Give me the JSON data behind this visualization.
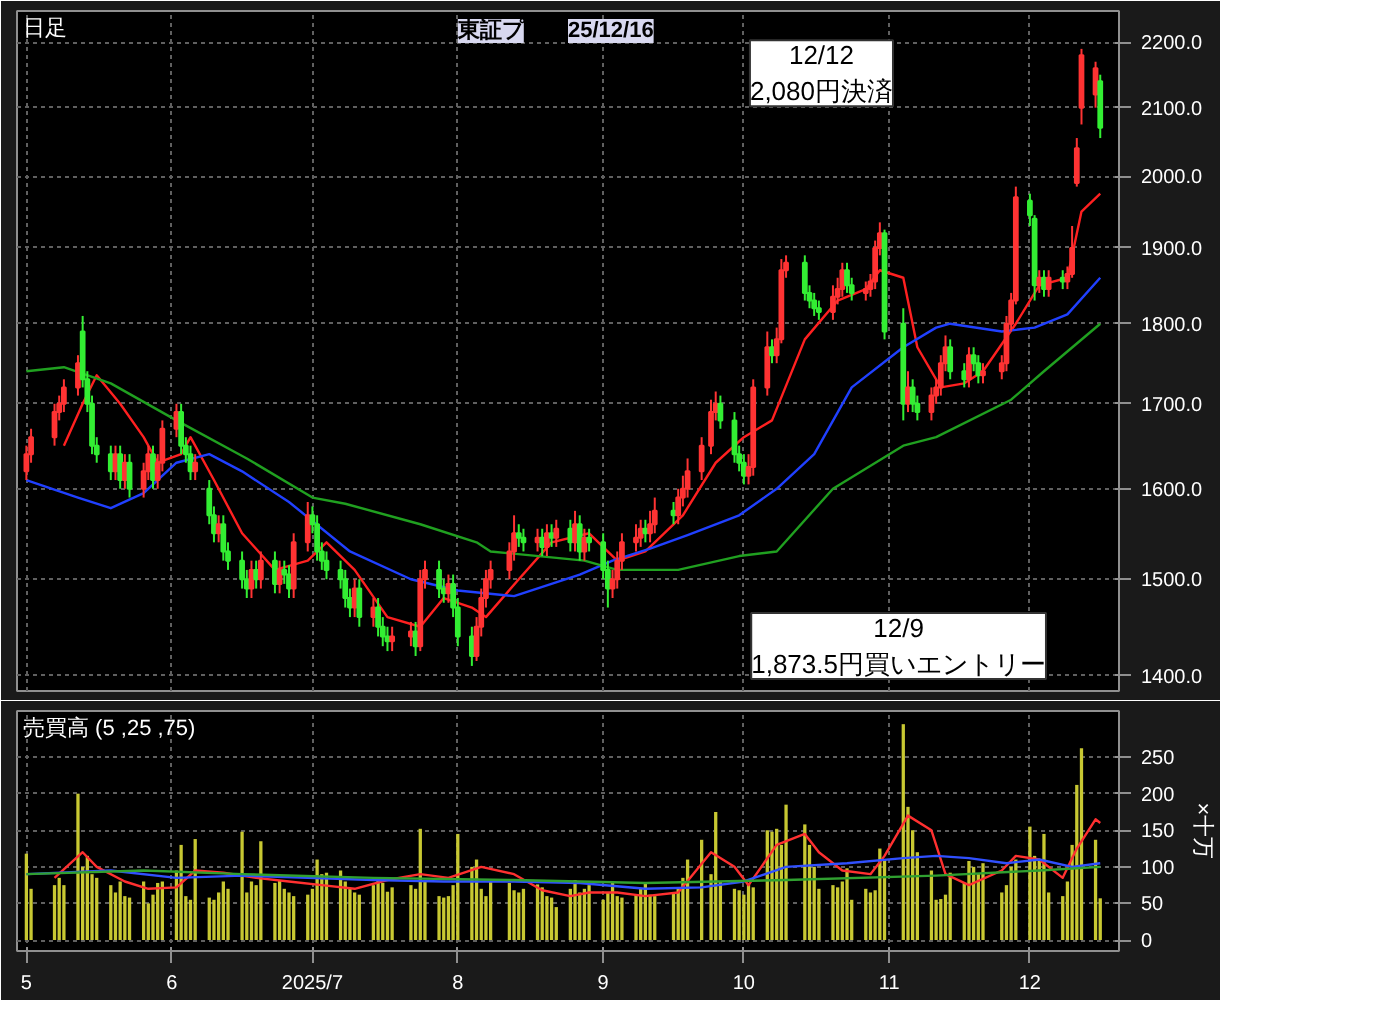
{
  "chart_data": [
    {
      "type": "candlestick",
      "title": "日足",
      "annotations": [
        "東証プ",
        "25/12/16",
        "12/12\n2,080円決済",
        "12/9\n1,873.5円買いエントリー"
      ],
      "x": [
        "2025-05-01",
        "2025-05-02",
        "2025-05-07",
        "2025-05-08",
        "2025-05-09",
        "2025-05-12",
        "2025-05-13",
        "2025-05-14",
        "2025-05-15",
        "2025-05-16",
        "2025-05-19",
        "2025-05-20",
        "2025-05-21",
        "2025-05-22",
        "2025-05-23",
        "2025-05-26",
        "2025-05-27",
        "2025-05-28",
        "2025-05-29",
        "2025-05-30",
        "2025-06-02",
        "2025-06-03",
        "2025-06-04",
        "2025-06-05",
        "2025-06-06",
        "2025-06-09",
        "2025-06-10",
        "2025-06-11",
        "2025-06-12",
        "2025-06-13",
        "2025-06-16",
        "2025-06-17",
        "2025-06-18",
        "2025-06-19",
        "2025-06-20",
        "2025-06-23",
        "2025-06-24",
        "2025-06-25",
        "2025-06-26",
        "2025-06-27",
        "2025-06-30",
        "2025-07-01",
        "2025-07-02",
        "2025-07-03",
        "2025-07-04",
        "2025-07-07",
        "2025-07-08",
        "2025-07-09",
        "2025-07-10",
        "2025-07-11",
        "2025-07-14",
        "2025-07-15",
        "2025-07-16",
        "2025-07-17",
        "2025-07-18",
        "2025-07-22",
        "2025-07-23",
        "2025-07-24",
        "2025-07-25",
        "2025-07-28",
        "2025-07-29",
        "2025-07-30",
        "2025-07-31",
        "2025-08-01",
        "2025-08-04",
        "2025-08-05",
        "2025-08-06",
        "2025-08-07",
        "2025-08-08",
        "2025-08-12",
        "2025-08-13",
        "2025-08-14",
        "2025-08-15",
        "2025-08-18",
        "2025-08-19",
        "2025-08-20",
        "2025-08-21",
        "2025-08-22",
        "2025-08-25",
        "2025-08-26",
        "2025-08-27",
        "2025-08-28",
        "2025-08-29",
        "2025-09-01",
        "2025-09-02",
        "2025-09-03",
        "2025-09-04",
        "2025-09-05",
        "2025-09-08",
        "2025-09-09",
        "2025-09-10",
        "2025-09-11",
        "2025-09-12",
        "2025-09-16",
        "2025-09-17",
        "2025-09-18",
        "2025-09-19",
        "2025-09-22",
        "2025-09-24",
        "2025-09-25",
        "2025-09-26",
        "2025-09-29",
        "2025-09-30",
        "2025-10-01",
        "2025-10-02",
        "2025-10-03",
        "2025-10-06",
        "2025-10-07",
        "2025-10-08",
        "2025-10-09",
        "2025-10-10",
        "2025-10-14",
        "2025-10-15",
        "2025-10-16",
        "2025-10-17",
        "2025-10-20",
        "2025-10-21",
        "2025-10-22",
        "2025-10-23",
        "2025-10-24",
        "2025-10-27",
        "2025-10-28",
        "2025-10-29",
        "2025-10-30",
        "2025-10-31",
        "2025-11-04",
        "2025-11-05",
        "2025-11-06",
        "2025-11-07",
        "2025-11-10",
        "2025-11-11",
        "2025-11-12",
        "2025-11-13",
        "2025-11-14",
        "2025-11-17",
        "2025-11-18",
        "2025-11-19",
        "2025-11-20",
        "2025-11-21",
        "2025-11-25",
        "2025-11-26",
        "2025-11-27",
        "2025-11-28",
        "2025-12-01",
        "2025-12-02",
        "2025-12-03",
        "2025-12-04",
        "2025-12-05",
        "2025-12-08",
        "2025-12-09",
        "2025-12-10",
        "2025-12-11",
        "2025-12-12",
        "2025-12-15",
        "2025-12-16"
      ],
      "ohlc": [
        [
          1620,
          1650,
          1610,
          1640
        ],
        [
          1640,
          1670,
          1630,
          1660
        ],
        [
          1660,
          1700,
          1650,
          1690
        ],
        [
          1690,
          1710,
          1680,
          1700
        ],
        [
          1700,
          1730,
          1690,
          1720
        ],
        [
          1720,
          1760,
          1710,
          1750
        ],
        [
          1790,
          1810,
          1720,
          1730
        ],
        [
          1730,
          1740,
          1690,
          1700
        ],
        [
          1700,
          1710,
          1640,
          1650
        ],
        [
          1650,
          1660,
          1630,
          1640
        ],
        [
          1640,
          1650,
          1610,
          1620
        ],
        [
          1620,
          1650,
          1610,
          1640
        ],
        [
          1640,
          1650,
          1600,
          1610
        ],
        [
          1610,
          1640,
          1600,
          1630
        ],
        [
          1630,
          1640,
          1590,
          1600
        ],
        [
          1600,
          1630,
          1590,
          1620
        ],
        [
          1620,
          1650,
          1610,
          1640
        ],
        [
          1640,
          1650,
          1600,
          1610
        ],
        [
          1610,
          1640,
          1600,
          1630
        ],
        [
          1630,
          1680,
          1620,
          1670
        ],
        [
          1670,
          1700,
          1660,
          1690
        ],
        [
          1690,
          1700,
          1640,
          1650
        ],
        [
          1650,
          1660,
          1630,
          1640
        ],
        [
          1640,
          1650,
          1610,
          1620
        ],
        [
          1620,
          1640,
          1610,
          1630
        ],
        [
          1600,
          1610,
          1560,
          1570
        ],
        [
          1570,
          1580,
          1540,
          1550
        ],
        [
          1550,
          1570,
          1540,
          1560
        ],
        [
          1560,
          1570,
          1520,
          1530
        ],
        [
          1530,
          1540,
          1510,
          1520
        ],
        [
          1520,
          1530,
          1490,
          1500
        ],
        [
          1500,
          1510,
          1480,
          1490
        ],
        [
          1490,
          1520,
          1480,
          1510
        ],
        [
          1510,
          1520,
          1490,
          1500
        ],
        [
          1500,
          1530,
          1490,
          1520
        ],
        [
          1520,
          1530,
          1485,
          1495
        ],
        [
          1495,
          1520,
          1485,
          1510
        ],
        [
          1510,
          1520,
          1495,
          1505
        ],
        [
          1505,
          1515,
          1480,
          1490
        ],
        [
          1490,
          1550,
          1480,
          1540
        ],
        [
          1540,
          1585,
          1530,
          1570
        ],
        [
          1570,
          1580,
          1550,
          1560
        ],
        [
          1560,
          1570,
          1520,
          1530
        ],
        [
          1530,
          1540,
          1510,
          1520
        ],
        [
          1520,
          1530,
          1500,
          1510
        ],
        [
          1510,
          1520,
          1490,
          1500
        ],
        [
          1500,
          1510,
          1470,
          1480
        ],
        [
          1480,
          1490,
          1460,
          1470
        ],
        [
          1470,
          1500,
          1460,
          1490
        ],
        [
          1490,
          1500,
          1450,
          1460
        ],
        [
          1460,
          1480,
          1450,
          1470
        ],
        [
          1470,
          1480,
          1440,
          1450
        ],
        [
          1450,
          1460,
          1430,
          1440
        ],
        [
          1440,
          1450,
          1425,
          1435
        ],
        [
          1435,
          1450,
          1425,
          1440
        ],
        [
          1440,
          1455,
          1430,
          1445
        ],
        [
          1445,
          1455,
          1420,
          1430
        ],
        [
          1430,
          1510,
          1425,
          1500
        ],
        [
          1500,
          1520,
          1490,
          1510
        ],
        [
          1510,
          1520,
          1480,
          1490
        ],
        [
          1490,
          1500,
          1475,
          1485
        ],
        [
          1485,
          1505,
          1475,
          1495
        ],
        [
          1495,
          1505,
          1460,
          1470
        ],
        [
          1470,
          1480,
          1430,
          1440
        ],
        [
          1440,
          1450,
          1410,
          1420
        ],
        [
          1420,
          1460,
          1415,
          1450
        ],
        [
          1450,
          1490,
          1440,
          1480
        ],
        [
          1480,
          1510,
          1470,
          1500
        ],
        [
          1500,
          1520,
          1490,
          1510
        ],
        [
          1510,
          1540,
          1500,
          1530
        ],
        [
          1530,
          1570,
          1520,
          1550
        ],
        [
          1550,
          1560,
          1535,
          1545
        ],
        [
          1545,
          1555,
          1530,
          1540
        ],
        [
          1540,
          1555,
          1530,
          1545
        ],
        [
          1545,
          1555,
          1525,
          1535
        ],
        [
          1535,
          1560,
          1525,
          1550
        ],
        [
          1550,
          1560,
          1535,
          1545
        ],
        [
          1545,
          1565,
          1535,
          1555
        ],
        [
          1555,
          1565,
          1530,
          1540
        ],
        [
          1540,
          1575,
          1530,
          1560
        ],
        [
          1560,
          1570,
          1520,
          1530
        ],
        [
          1530,
          1555,
          1520,
          1545
        ],
        [
          1545,
          1555,
          1530,
          1540
        ],
        [
          1540,
          1550,
          1500,
          1510
        ],
        [
          1510,
          1520,
          1470,
          1490
        ],
        [
          1490,
          1510,
          1480,
          1500
        ],
        [
          1500,
          1530,
          1490,
          1520
        ],
        [
          1520,
          1550,
          1510,
          1540
        ],
        [
          1540,
          1560,
          1530,
          1545
        ],
        [
          1545,
          1565,
          1535,
          1555
        ],
        [
          1555,
          1565,
          1540,
          1550
        ],
        [
          1550,
          1575,
          1540,
          1560
        ],
        [
          1560,
          1590,
          1550,
          1575
        ],
        [
          1575,
          1585,
          1560,
          1570
        ],
        [
          1570,
          1600,
          1560,
          1590
        ],
        [
          1590,
          1615,
          1580,
          1600
        ],
        [
          1600,
          1635,
          1590,
          1620
        ],
        [
          1620,
          1660,
          1610,
          1650
        ],
        [
          1650,
          1705,
          1640,
          1690
        ],
        [
          1690,
          1715,
          1680,
          1700
        ],
        [
          1700,
          1710,
          1670,
          1680
        ],
        [
          1680,
          1690,
          1630,
          1640
        ],
        [
          1640,
          1650,
          1620,
          1630
        ],
        [
          1630,
          1640,
          1605,
          1615
        ],
        [
          1615,
          1640,
          1605,
          1625
        ],
        [
          1625,
          1730,
          1615,
          1720
        ],
        [
          1720,
          1790,
          1710,
          1770
        ],
        [
          1770,
          1780,
          1750,
          1760
        ],
        [
          1760,
          1795,
          1750,
          1780
        ],
        [
          1780,
          1885,
          1775,
          1870
        ],
        [
          1870,
          1890,
          1860,
          1880
        ],
        [
          1880,
          1890,
          1830,
          1840
        ],
        [
          1840,
          1850,
          1820,
          1830
        ],
        [
          1830,
          1840,
          1810,
          1820
        ],
        [
          1820,
          1830,
          1805,
          1815
        ],
        [
          1815,
          1850,
          1805,
          1835
        ],
        [
          1835,
          1860,
          1825,
          1845
        ],
        [
          1845,
          1880,
          1835,
          1870
        ],
        [
          1870,
          1880,
          1840,
          1850
        ],
        [
          1850,
          1860,
          1830,
          1840
        ],
        [
          1840,
          1855,
          1830,
          1845
        ],
        [
          1845,
          1865,
          1835,
          1855
        ],
        [
          1855,
          1910,
          1845,
          1900
        ],
        [
          1900,
          1935,
          1890,
          1920
        ],
        [
          1920,
          1925,
          1780,
          1790
        ],
        [
          1800,
          1820,
          1680,
          1700
        ],
        [
          1700,
          1740,
          1690,
          1720
        ],
        [
          1720,
          1730,
          1690,
          1700
        ],
        [
          1700,
          1710,
          1680,
          1690
        ],
        [
          1690,
          1720,
          1680,
          1710
        ],
        [
          1710,
          1730,
          1700,
          1720
        ],
        [
          1720,
          1760,
          1710,
          1750
        ],
        [
          1750,
          1785,
          1740,
          1770
        ],
        [
          1770,
          1780,
          1730,
          1740
        ],
        [
          1740,
          1750,
          1720,
          1730
        ],
        [
          1730,
          1770,
          1720,
          1760
        ],
        [
          1760,
          1770,
          1740,
          1750
        ],
        [
          1750,
          1760,
          1725,
          1735
        ],
        [
          1735,
          1750,
          1725,
          1740
        ],
        [
          1740,
          1760,
          1730,
          1750
        ],
        [
          1750,
          1810,
          1740,
          1800
        ],
        [
          1800,
          1840,
          1790,
          1830
        ],
        [
          1830,
          1985,
          1825,
          1970
        ],
        [
          1965,
          1975,
          1930,
          1945
        ],
        [
          1940,
          1945,
          1830,
          1850
        ],
        [
          1850,
          1870,
          1840,
          1860
        ],
        [
          1860,
          1870,
          1835,
          1845
        ],
        [
          1845,
          1870,
          1835,
          1860
        ],
        [
          1860,
          1870,
          1845,
          1855
        ],
        [
          1855,
          1875,
          1845,
          1865
        ],
        [
          1865,
          1930,
          1860,
          1900
        ],
        [
          1990,
          2055,
          1985,
          2040
        ],
        [
          2100,
          2190,
          2075,
          2180
        ],
        [
          2120,
          2170,
          2100,
          2160
        ],
        [
          2140,
          2150,
          2055,
          2070
        ]
      ],
      "colors": [
        "#ff3333",
        "#ff3333",
        "#ff3333",
        "#ff3333",
        "#ff3333",
        "#ff3333",
        "#33ee33",
        "#33ee33",
        "#33ee33",
        "#33ee33",
        "#33ee33",
        "#ff3333",
        "#33ee33",
        "#ff3333",
        "#33ee33",
        "#ff3333",
        "#ff3333",
        "#33ee33",
        "#ff3333",
        "#ff3333",
        "#ff3333",
        "#33ee33",
        "#33ee33",
        "#33ee33",
        "#ff3333",
        "#33ee33",
        "#33ee33",
        "#ff3333",
        "#33ee33",
        "#33ee33",
        "#33ee33",
        "#33ee33",
        "#ff3333",
        "#33ee33",
        "#ff3333",
        "#33ee33",
        "#ff3333",
        "#33ee33",
        "#33ee33",
        "#ff3333",
        "#ff3333",
        "#33ee33",
        "#33ee33",
        "#33ee33",
        "#33ee33",
        "#33ee33",
        "#33ee33",
        "#33ee33",
        "#ff3333",
        "#33ee33",
        "#ff3333",
        "#33ee33",
        "#33ee33",
        "#33ee33",
        "#ff3333",
        "#ff3333",
        "#33ee33",
        "#ff3333",
        "#ff3333",
        "#33ee33",
        "#33ee33",
        "#ff3333",
        "#33ee33",
        "#33ee33",
        "#33ee33",
        "#ff3333",
        "#ff3333",
        "#ff3333",
        "#ff3333",
        "#ff3333",
        "#ff3333",
        "#33ee33",
        "#33ee33",
        "#ff3333",
        "#33ee33",
        "#ff3333",
        "#33ee33",
        "#ff3333",
        "#33ee33",
        "#ff3333",
        "#33ee33",
        "#ff3333",
        "#33ee33",
        "#33ee33",
        "#33ee33",
        "#ff3333",
        "#ff3333",
        "#ff3333",
        "#ff3333",
        "#ff3333",
        "#33ee33",
        "#ff3333",
        "#ff3333",
        "#33ee33",
        "#ff3333",
        "#ff3333",
        "#ff3333",
        "#ff3333",
        "#ff3333",
        "#ff3333",
        "#33ee33",
        "#33ee33",
        "#33ee33",
        "#33ee33",
        "#ff3333",
        "#ff3333",
        "#ff3333",
        "#33ee33",
        "#ff3333",
        "#ff3333",
        "#ff3333",
        "#33ee33",
        "#33ee33",
        "#33ee33",
        "#33ee33",
        "#ff3333",
        "#ff3333",
        "#ff3333",
        "#33ee33",
        "#33ee33",
        "#ff3333",
        "#ff3333",
        "#ff3333",
        "#ff3333",
        "#33ee33",
        "#33ee33",
        "#ff3333",
        "#33ee33",
        "#33ee33",
        "#ff3333",
        "#ff3333",
        "#ff3333",
        "#ff3333",
        "#33ee33",
        "#33ee33",
        "#ff3333",
        "#33ee33",
        "#33ee33",
        "#ff3333",
        "#ff3333",
        "#ff3333",
        "#ff3333",
        "#ff3333",
        "#33ee33",
        "#33ee33",
        "#ff3333",
        "#33ee33",
        "#ff3333",
        "#33ee33",
        "#ff3333",
        "#ff3333",
        "#ff3333",
        "#ff3333",
        "#ff3333",
        "#33ee33"
      ],
      "series": [
        {
          "type": "line",
          "color": "#ff2020",
          "x": [
            "2025-05-09",
            "2025-05-13",
            "2025-05-16",
            "2025-05-21",
            "2025-05-26",
            "2025-05-29",
            "2025-06-03",
            "2025-06-05",
            "2025-06-10",
            "2025-06-16",
            "2025-06-23",
            "2025-06-30",
            "2025-07-04",
            "2025-07-10",
            "2025-07-17",
            "2025-07-24",
            "2025-07-29",
            "2025-08-04",
            "2025-08-07",
            "2025-08-14",
            "2025-08-21",
            "2025-08-29",
            "2025-09-04",
            "2025-09-10",
            "2025-09-18",
            "2025-09-25",
            "2025-10-01",
            "2025-10-07",
            "2025-10-14",
            "2025-10-21",
            "2025-10-27",
            "2025-10-30",
            "2025-11-04",
            "2025-11-07",
            "2025-11-12",
            "2025-11-17",
            "2025-11-21",
            "2025-11-28",
            "2025-12-03",
            "2025-12-09",
            "2025-12-12",
            "2025-12-16"
          ],
          "values": [
            1650,
            1700,
            1735,
            1700,
            1660,
            1630,
            1640,
            1660,
            1610,
            1550,
            1510,
            1520,
            1540,
            1510,
            1460,
            1450,
            1480,
            1470,
            1460,
            1500,
            1540,
            1550,
            1520,
            1530,
            1570,
            1630,
            1660,
            1680,
            1780,
            1830,
            1845,
            1870,
            1860,
            1770,
            1720,
            1725,
            1740,
            1800,
            1850,
            1860,
            1950,
            1975
          ]
        },
        {
          "type": "line",
          "color": "#2040ff",
          "x": [
            "2025-05-01",
            "2025-05-12",
            "2025-05-19",
            "2025-05-26",
            "2025-06-02",
            "2025-06-09",
            "2025-06-16",
            "2025-06-26",
            "2025-07-09",
            "2025-07-22",
            "2025-08-01",
            "2025-08-13",
            "2025-08-27",
            "2025-09-03",
            "2025-09-11",
            "2025-09-19",
            "2025-09-30",
            "2025-10-08",
            "2025-10-16",
            "2025-10-24",
            "2025-11-04",
            "2025-11-11",
            "2025-11-14",
            "2025-11-25",
            "2025-12-02",
            "2025-12-09",
            "2025-12-16"
          ],
          "values": [
            1610,
            1590,
            1578,
            1595,
            1630,
            1640,
            1620,
            1585,
            1530,
            1500,
            1488,
            1482,
            1505,
            1520,
            1533,
            1548,
            1570,
            1600,
            1640,
            1720,
            1770,
            1795,
            1800,
            1790,
            1795,
            1812,
            1860
          ]
        },
        {
          "type": "line",
          "color": "#20a020",
          "x": [
            "2025-05-01",
            "2025-05-09",
            "2025-05-19",
            "2025-06-02",
            "2025-06-17",
            "2025-07-01",
            "2025-07-08",
            "2025-07-24",
            "2025-08-05",
            "2025-08-08",
            "2025-08-28",
            "2025-09-04",
            "2025-09-17",
            "2025-09-30",
            "2025-10-08",
            "2025-10-20",
            "2025-11-04",
            "2025-11-11",
            "2025-11-27",
            "2025-12-04",
            "2025-12-16"
          ],
          "values": [
            1740,
            1745,
            1725,
            1680,
            1635,
            1590,
            1583,
            1560,
            1540,
            1530,
            1520,
            1510,
            1510,
            1525,
            1530,
            1600,
            1650,
            1660,
            1705,
            1740,
            1800
          ]
        }
      ],
      "xlim": [
        "2025-04-29",
        "2025-12-20"
      ],
      "xticks": [
        {
          "value": "2025-05",
          "label": null
        },
        {
          "value": "2025-06",
          "label": null
        },
        {
          "value": "2025-07",
          "label": null
        },
        {
          "value": "2025-08",
          "label": null
        },
        {
          "value": "2025-09",
          "label": null
        },
        {
          "value": "2025-10",
          "label": null
        },
        {
          "value": "2025-11",
          "label": null
        },
        {
          "value": "2025-12",
          "label": null
        }
      ],
      "ylim": [
        1385,
        2250
      ],
      "log": "y",
      "yticks": [
        {
          "value": 1400,
          "label": "1400.0"
        },
        {
          "value": 1500,
          "label": "1500.0"
        },
        {
          "value": 1600,
          "label": "1600.0"
        },
        {
          "value": 1700,
          "label": "1700.0"
        },
        {
          "value": 1800,
          "label": "1800.0"
        },
        {
          "value": 1900,
          "label": "1900.0"
        },
        {
          "value": 2000,
          "label": "2000.0"
        },
        {
          "value": 2100,
          "label": "2100.0"
        },
        {
          "value": 2200,
          "label": "2200.0"
        }
      ],
      "grid": true,
      "tick_labels": "y"
    },
    {
      "type": "bar",
      "title": "売買高 (5 ,25 ,75)",
      "ylabel": "×十万",
      "x": [
        "2025-05-01",
        "2025-05-02",
        "2025-05-07",
        "2025-05-08",
        "2025-05-09",
        "2025-05-12",
        "2025-05-13",
        "2025-05-14",
        "2025-05-15",
        "2025-05-16",
        "2025-05-19",
        "2025-05-20",
        "2025-05-21",
        "2025-05-22",
        "2025-05-23",
        "2025-05-26",
        "2025-05-27",
        "2025-05-28",
        "2025-05-29",
        "2025-05-30",
        "2025-06-02",
        "2025-06-03",
        "2025-06-04",
        "2025-06-05",
        "2025-06-06",
        "2025-06-09",
        "2025-06-10",
        "2025-06-11",
        "2025-06-12",
        "2025-06-13",
        "2025-06-16",
        "2025-06-17",
        "2025-06-18",
        "2025-06-19",
        "2025-06-20",
        "2025-06-23",
        "2025-06-24",
        "2025-06-25",
        "2025-06-26",
        "2025-06-27",
        "2025-06-30",
        "2025-07-01",
        "2025-07-02",
        "2025-07-03",
        "2025-07-04",
        "2025-07-07",
        "2025-07-08",
        "2025-07-09",
        "2025-07-10",
        "2025-07-11",
        "2025-07-14",
        "2025-07-15",
        "2025-07-16",
        "2025-07-17",
        "2025-07-18",
        "2025-07-22",
        "2025-07-23",
        "2025-07-24",
        "2025-07-25",
        "2025-07-28",
        "2025-07-29",
        "2025-07-30",
        "2025-07-31",
        "2025-08-01",
        "2025-08-04",
        "2025-08-05",
        "2025-08-06",
        "2025-08-07",
        "2025-08-08",
        "2025-08-12",
        "2025-08-13",
        "2025-08-14",
        "2025-08-15",
        "2025-08-18",
        "2025-08-19",
        "2025-08-20",
        "2025-08-21",
        "2025-08-22",
        "2025-08-25",
        "2025-08-26",
        "2025-08-27",
        "2025-08-28",
        "2025-08-29",
        "2025-09-01",
        "2025-09-02",
        "2025-09-03",
        "2025-09-04",
        "2025-09-05",
        "2025-09-08",
        "2025-09-09",
        "2025-09-10",
        "2025-09-11",
        "2025-09-12",
        "2025-09-16",
        "2025-09-17",
        "2025-09-18",
        "2025-09-19",
        "2025-09-22",
        "2025-09-24",
        "2025-09-25",
        "2025-09-26",
        "2025-09-29",
        "2025-09-30",
        "2025-10-01",
        "2025-10-02",
        "2025-10-03",
        "2025-10-06",
        "2025-10-07",
        "2025-10-08",
        "2025-10-09",
        "2025-10-10",
        "2025-10-14",
        "2025-10-15",
        "2025-10-16",
        "2025-10-17",
        "2025-10-20",
        "2025-10-21",
        "2025-10-22",
        "2025-10-23",
        "2025-10-24",
        "2025-10-27",
        "2025-10-28",
        "2025-10-29",
        "2025-10-30",
        "2025-10-31",
        "2025-11-04",
        "2025-11-05",
        "2025-11-06",
        "2025-11-07",
        "2025-11-10",
        "2025-11-11",
        "2025-11-12",
        "2025-11-13",
        "2025-11-14",
        "2025-11-17",
        "2025-11-18",
        "2025-11-19",
        "2025-11-20",
        "2025-11-21",
        "2025-11-25",
        "2025-11-26",
        "2025-11-27",
        "2025-11-28",
        "2025-12-01",
        "2025-12-02",
        "2025-12-03",
        "2025-12-04",
        "2025-12-05",
        "2025-12-08",
        "2025-12-09",
        "2025-12-10",
        "2025-12-11",
        "2025-12-12",
        "2025-12-15",
        "2025-12-16"
      ],
      "series": [
        {
          "type": "bar",
          "color": "#c8c832",
          "values": [
            118,
            70,
            75,
            85,
            75,
            200,
            100,
            115,
            90,
            85,
            75,
            65,
            80,
            60,
            58,
            80,
            50,
            62,
            78,
            80,
            95,
            130,
            60,
            55,
            138,
            58,
            55,
            65,
            80,
            70,
            148,
            65,
            80,
            75,
            135,
            78,
            82,
            70,
            65,
            60,
            62,
            70,
            110,
            90,
            92,
            95,
            80,
            70,
            65,
            62,
            75,
            85,
            78,
            66,
            72,
            75,
            70,
            152,
            80,
            60,
            58,
            60,
            75,
            145,
            100,
            110,
            70,
            60,
            80,
            78,
            68,
            65,
            70,
            76,
            72,
            60,
            58,
            45,
            70,
            82,
            65,
            70,
            75,
            55,
            65,
            80,
            60,
            58,
            62,
            70,
            78,
            62,
            60,
            65,
            70,
            85,
            110,
            137,
            90,
            175,
            80,
            70,
            68,
            62,
            78,
            72,
            150,
            148,
            152,
            130,
            185,
            158,
            130,
            100,
            70,
            75,
            72,
            80,
            98,
            55,
            70,
            65,
            68,
            125,
            110,
            295,
            182,
            150,
            120,
            95,
            55,
            56,
            62,
            92,
            78,
            108,
            100,
            90,
            105,
            65,
            75,
            100,
            110,
            155,
            115,
            110,
            145,
            65,
            60,
            80,
            130,
            212,
            262,
            137,
            57
          ]
        },
        {
          "type": "line",
          "color": "#ff3030",
          "x": [
            "2025-05-07",
            "2025-05-13",
            "2025-05-16",
            "2025-05-22",
            "2025-05-27",
            "2025-06-02",
            "2025-06-06",
            "2025-06-12",
            "2025-06-19",
            "2025-06-26",
            "2025-07-03",
            "2025-07-10",
            "2025-07-17",
            "2025-07-24",
            "2025-07-30",
            "2025-08-06",
            "2025-08-13",
            "2025-08-19",
            "2025-08-25",
            "2025-08-29",
            "2025-09-04",
            "2025-09-10",
            "2025-09-17",
            "2025-09-24",
            "2025-09-29",
            "2025-10-02",
            "2025-10-08",
            "2025-10-14",
            "2025-10-17",
            "2025-10-22",
            "2025-10-28",
            "2025-10-31",
            "2025-11-05",
            "2025-11-10",
            "2025-11-13",
            "2025-11-18",
            "2025-11-25",
            "2025-11-28",
            "2025-12-03",
            "2025-12-08",
            "2025-12-11",
            "2025-12-15",
            "2025-12-16"
          ],
          "values": [
            85,
            120,
            100,
            80,
            70,
            72,
            95,
            92,
            85,
            80,
            75,
            70,
            82,
            90,
            85,
            100,
            90,
            68,
            60,
            65,
            65,
            60,
            65,
            120,
            100,
            75,
            130,
            145,
            120,
            95,
            90,
            115,
            170,
            150,
            90,
            75,
            95,
            115,
            110,
            85,
            125,
            165,
            160
          ]
        },
        {
          "type": "line",
          "color": "#3050ff",
          "x": [
            "2025-05-01",
            "2025-05-19",
            "2025-06-02",
            "2025-06-16",
            "2025-06-30",
            "2025-07-14",
            "2025-07-29",
            "2025-08-13",
            "2025-08-27",
            "2025-09-10",
            "2025-09-22",
            "2025-10-01",
            "2025-10-10",
            "2025-10-23",
            "2025-11-04",
            "2025-11-11",
            "2025-11-18",
            "2025-11-26",
            "2025-12-03",
            "2025-12-10",
            "2025-12-16"
          ],
          "values": [
            90,
            95,
            85,
            88,
            85,
            82,
            80,
            80,
            78,
            70,
            72,
            80,
            100,
            105,
            112,
            115,
            112,
            105,
            110,
            100,
            105
          ]
        },
        {
          "type": "line",
          "color": "#30a030",
          "x": [
            "2025-05-01",
            "2025-05-26",
            "2025-06-16",
            "2025-07-14",
            "2025-08-13",
            "2025-09-10",
            "2025-10-10",
            "2025-11-11",
            "2025-12-03",
            "2025-12-16"
          ],
          "values": [
            90,
            95,
            90,
            85,
            82,
            78,
            82,
            88,
            95,
            100
          ]
        }
      ],
      "xlim": [
        "2025-04-29",
        "2025-12-20"
      ],
      "xticks": [
        {
          "value": "2025-05",
          "label": "5"
        },
        {
          "value": "2025-06",
          "label": "6"
        },
        {
          "value": "2025-07",
          "label": "2025/7"
        },
        {
          "value": "2025-08",
          "label": "8"
        },
        {
          "value": "2025-09",
          "label": "9"
        },
        {
          "value": "2025-10",
          "label": "10"
        },
        {
          "value": "2025-11",
          "label": "11"
        },
        {
          "value": "2025-12",
          "label": "12"
        }
      ],
      "ylim": [
        -15,
        313
      ],
      "yticks": [
        0,
        50,
        100,
        150,
        200,
        250
      ],
      "grid": true
    }
  ]
}
